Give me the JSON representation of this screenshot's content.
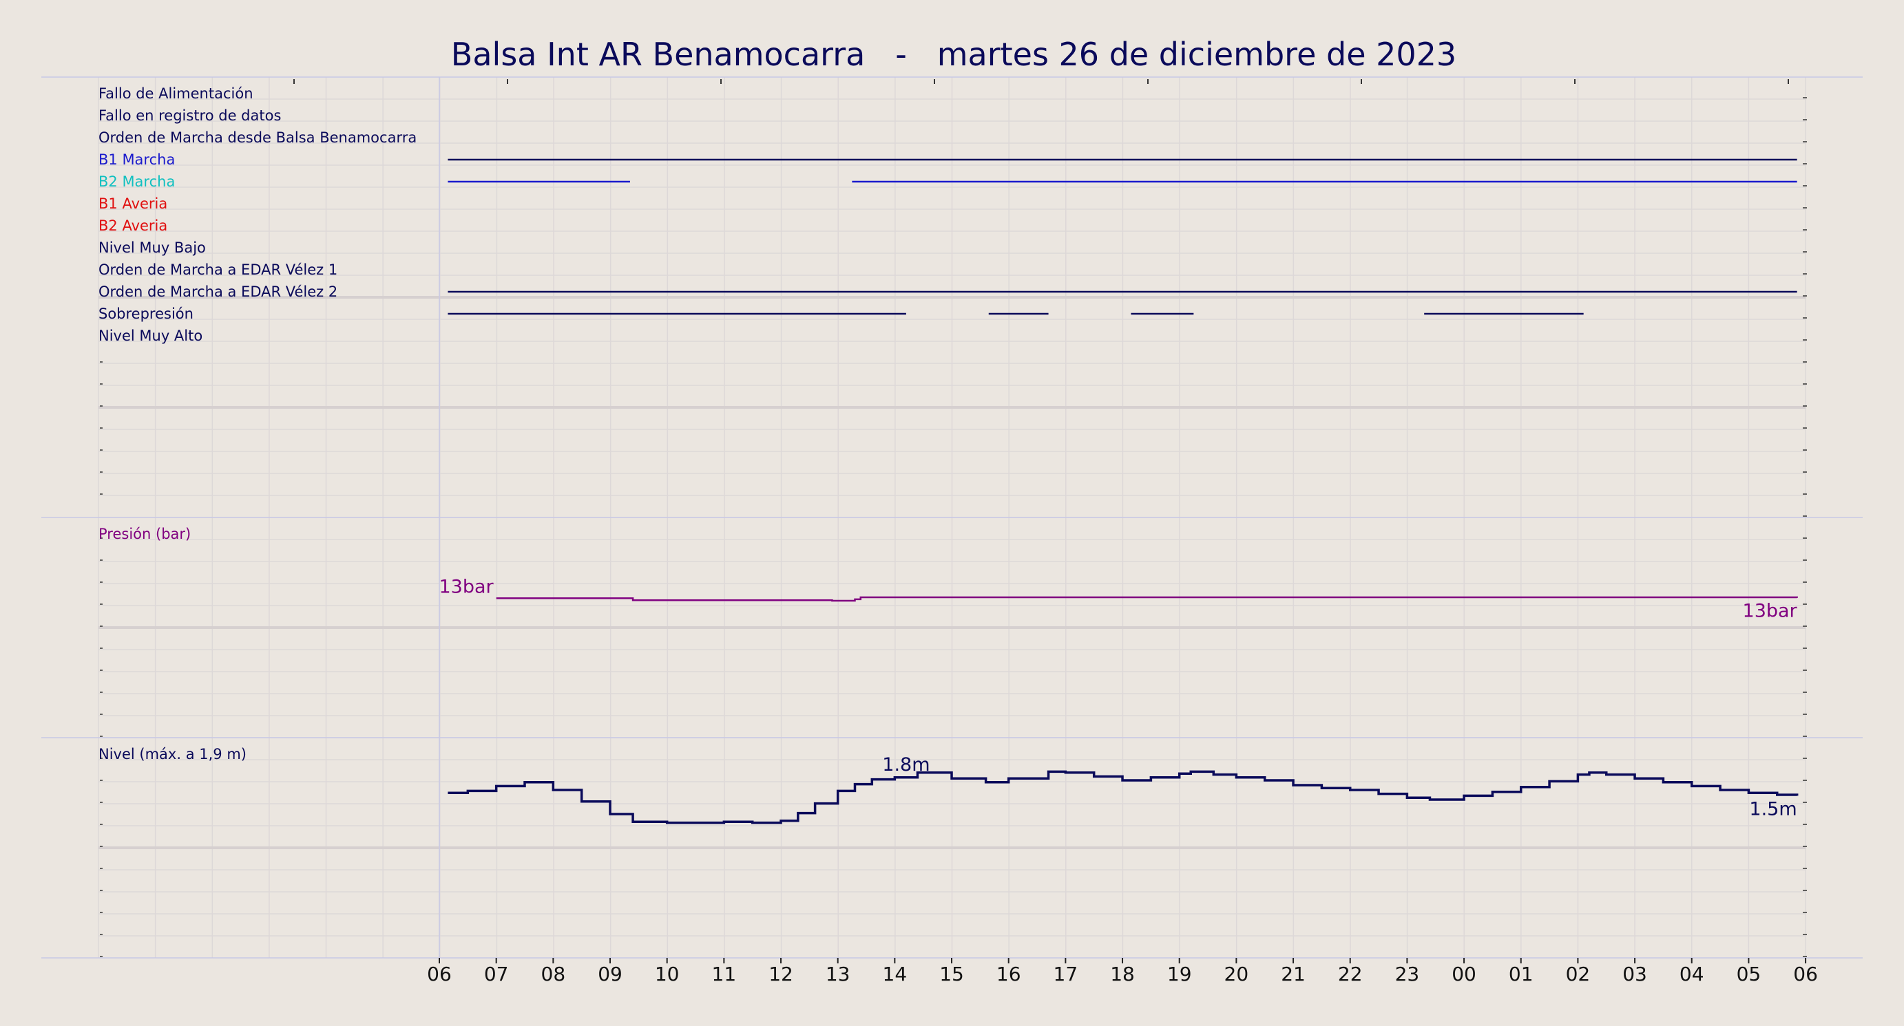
{
  "title": "Balsa Int AR Benamocarra   -   martes 26 de diciembre de 2023",
  "colors": {
    "background": "#ebe6e0",
    "navy": "#0a0a5a",
    "blue": "#1a1acc",
    "cyan": "#10c0c0",
    "red": "#e01010",
    "purple": "#800080",
    "grid": "#ddd8d8",
    "separator": "#c8c8e6"
  },
  "chart_data": [
    {
      "type": "line",
      "panel": "events",
      "x_unit": "hour",
      "x_ticks": [
        "06",
        "07",
        "08",
        "09",
        "10",
        "11",
        "12",
        "13",
        "14",
        "15",
        "16",
        "17",
        "18",
        "19",
        "20",
        "21",
        "22",
        "23",
        "00",
        "01",
        "02",
        "03",
        "04",
        "05",
        "06"
      ],
      "series": [
        {
          "name": "Fallo de Alimentación",
          "color": "#0a0a5a",
          "segments": []
        },
        {
          "name": "Fallo en registro de datos",
          "color": "#0a0a5a",
          "segments": []
        },
        {
          "name": "Orden de Marcha desde Balsa Benamocarra",
          "color": "#0a0a5a",
          "segments": [
            [
              6.15,
              29.85
            ]
          ]
        },
        {
          "name": "B1 Marcha",
          "color": "#1a1acc",
          "segments": [
            [
              6.15,
              9.35
            ],
            [
              13.25,
              29.85
            ]
          ]
        },
        {
          "name": "B2 Marcha",
          "color": "#10c0c0",
          "segments": []
        },
        {
          "name": "B1 Averia",
          "color": "#e01010",
          "segments": []
        },
        {
          "name": "B2 Averia",
          "color": "#e01010",
          "segments": []
        },
        {
          "name": "Nivel Muy Bajo",
          "color": "#0a0a5a",
          "segments": []
        },
        {
          "name": "Orden de Marcha a EDAR Vélez 1",
          "color": "#0a0a5a",
          "segments": [
            [
              6.15,
              29.85
            ]
          ]
        },
        {
          "name": "Orden de Marcha a EDAR Vélez 2",
          "color": "#0a0a5a",
          "segments": [
            [
              6.15,
              14.2
            ],
            [
              15.65,
              16.7
            ],
            [
              18.15,
              19.25
            ],
            [
              23.3,
              26.1
            ]
          ]
        },
        {
          "name": "Sobrepresión",
          "color": "#0a0a5a",
          "segments": []
        },
        {
          "name": "Nivel Muy Alto",
          "color": "#0a0a5a",
          "segments": []
        }
      ]
    },
    {
      "type": "line",
      "panel": "pressure",
      "ylabel": "Presión (bar)",
      "ylim": [
        0,
        20
      ],
      "color": "#800080",
      "start_label": "13bar",
      "end_label": "13bar",
      "x": [
        7.0,
        9.3,
        9.4,
        10.4,
        10.7,
        12.5,
        12.9,
        13.3,
        13.4,
        30.0
      ],
      "y": [
        13.0,
        13.0,
        12.8,
        12.8,
        12.8,
        12.8,
        12.75,
        12.9,
        13.1,
        13.05
      ]
    },
    {
      "type": "line",
      "panel": "level",
      "ylabel": "Nivel (máx. a 1,9 m)",
      "ylim": [
        0,
        2.0
      ],
      "color": "#0a0a5a",
      "max_label": "1.8m",
      "end_label": "1.5m",
      "x": [
        6.15,
        6.5,
        7.0,
        7.5,
        8.0,
        8.5,
        9.0,
        9.4,
        10.0,
        10.5,
        11.0,
        11.5,
        12.0,
        12.3,
        12.6,
        13.0,
        13.3,
        13.6,
        14.0,
        14.4,
        15.0,
        15.6,
        16.0,
        16.7,
        17.0,
        17.5,
        18.0,
        18.5,
        19.0,
        19.2,
        19.6,
        20.0,
        20.5,
        21.0,
        21.5,
        22.0,
        22.5,
        23.0,
        23.4,
        24.0,
        24.5,
        25.0,
        25.5,
        26.0,
        26.2,
        26.5,
        27.0,
        27.5,
        28.0,
        28.5,
        29.0,
        29.5,
        29.85
      ],
      "y": [
        1.57,
        1.59,
        1.64,
        1.68,
        1.6,
        1.48,
        1.35,
        1.27,
        1.26,
        1.26,
        1.27,
        1.26,
        1.28,
        1.36,
        1.46,
        1.59,
        1.66,
        1.71,
        1.73,
        1.78,
        1.72,
        1.68,
        1.72,
        1.79,
        1.78,
        1.74,
        1.7,
        1.73,
        1.77,
        1.79,
        1.76,
        1.73,
        1.7,
        1.65,
        1.62,
        1.6,
        1.56,
        1.52,
        1.5,
        1.54,
        1.58,
        1.63,
        1.69,
        1.76,
        1.78,
        1.76,
        1.72,
        1.68,
        1.64,
        1.6,
        1.57,
        1.55,
        1.54
      ]
    }
  ]
}
